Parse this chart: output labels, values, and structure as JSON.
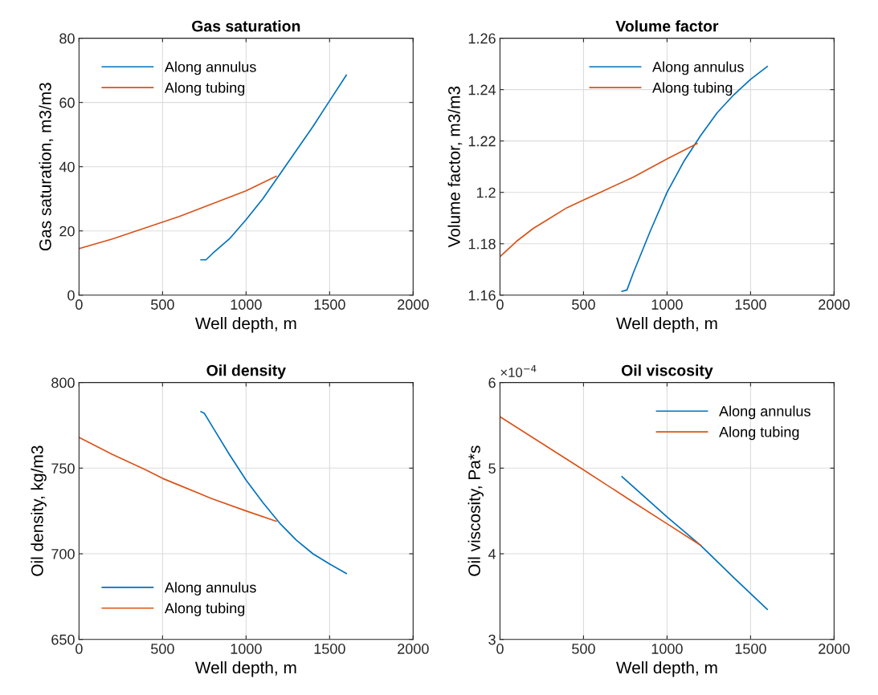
{
  "chart_data": [
    {
      "type": "line",
      "title": "Gas saturation",
      "xlabel": "Well depth, m",
      "ylabel": "Gas saturation, m3/m3",
      "xlim": [
        0,
        2000
      ],
      "xticks": [
        0,
        500,
        1000,
        1500,
        2000
      ],
      "ylim": [
        0,
        80
      ],
      "yticks": [
        0,
        20,
        40,
        60,
        80
      ],
      "grid": true,
      "legend": "top left",
      "series": [
        {
          "name": "Along annulus",
          "color": "#0072bd",
          "x": [
            730,
            760,
            800,
            900,
            1000,
            1100,
            1200,
            1300,
            1400,
            1500,
            1600
          ],
          "values": [
            11,
            11,
            13,
            17.5,
            23.5,
            30,
            37.5,
            45,
            52.5,
            60.5,
            68.5
          ]
        },
        {
          "name": "Along tubing",
          "color": "#d95319",
          "x": [
            0,
            200,
            400,
            600,
            800,
            1000,
            1180
          ],
          "values": [
            14.5,
            17.5,
            21,
            24.5,
            28.5,
            32.5,
            37
          ]
        }
      ]
    },
    {
      "type": "line",
      "title": "Volume factor",
      "xlabel": "Well depth, m",
      "ylabel": "Volume factor, m3/m3",
      "xlim": [
        0,
        2000
      ],
      "xticks": [
        0,
        500,
        1000,
        1500,
        2000
      ],
      "ylim": [
        1.16,
        1.26
      ],
      "yticks": [
        1.16,
        1.18,
        1.2,
        1.22,
        1.24,
        1.26
      ],
      "grid": true,
      "legend": "top",
      "series": [
        {
          "name": "Along annulus",
          "color": "#0072bd",
          "x": [
            730,
            760,
            800,
            900,
            1000,
            1100,
            1200,
            1300,
            1400,
            1500,
            1600
          ],
          "values": [
            1.1615,
            1.162,
            1.169,
            1.185,
            1.2,
            1.212,
            1.222,
            1.231,
            1.238,
            1.244,
            1.249
          ]
        },
        {
          "name": "Along tubing",
          "color": "#d95319",
          "x": [
            0,
            100,
            200,
            300,
            400,
            500,
            600,
            800,
            1000,
            1180
          ],
          "values": [
            1.175,
            1.181,
            1.186,
            1.19,
            1.194,
            1.197,
            1.2,
            1.206,
            1.213,
            1.219
          ]
        }
      ]
    },
    {
      "type": "line",
      "title": "Oil density",
      "xlabel": "Well depth, m",
      "ylabel": "Oil density, kg/m3",
      "xlim": [
        0,
        2000
      ],
      "xticks": [
        0,
        500,
        1000,
        1500,
        2000
      ],
      "ylim": [
        650,
        800
      ],
      "yticks": [
        650,
        700,
        750,
        800
      ],
      "grid": true,
      "legend": "bottom left",
      "series": [
        {
          "name": "Along annulus",
          "color": "#0072bd",
          "x": [
            730,
            750,
            800,
            900,
            1000,
            1100,
            1200,
            1300,
            1400,
            1500,
            1600
          ],
          "values": [
            783,
            782,
            774,
            758,
            743,
            730,
            718,
            708,
            700,
            694,
            688.5
          ]
        },
        {
          "name": "Along tubing",
          "color": "#d95319",
          "x": [
            0,
            200,
            400,
            500,
            600,
            800,
            1000,
            1180
          ],
          "values": [
            768,
            758,
            749,
            744,
            740,
            732,
            725,
            719
          ]
        }
      ]
    },
    {
      "type": "line",
      "title": "Oil viscosity",
      "xlabel": "Well depth, m",
      "ylabel": "Oil viscosity, Pa*s",
      "annotations": [
        "×10$^{−4}$"
      ],
      "xlim": [
        0,
        2000
      ],
      "xticks": [
        0,
        500,
        1000,
        1500,
        2000
      ],
      "ylim": [
        3,
        6
      ],
      "yticks": [
        3,
        4,
        5,
        6
      ],
      "grid": true,
      "legend": "top right",
      "series": [
        {
          "name": "Along annulus",
          "color": "#0072bd",
          "x": [
            730,
            1000,
            1200,
            1400,
            1600
          ],
          "values": [
            4.9,
            4.43,
            4.1,
            3.72,
            3.35
          ]
        },
        {
          "name": "Along tubing",
          "color": "#d95319",
          "x": [
            0,
            500,
            800,
            1000,
            1200
          ],
          "values": [
            5.6,
            4.98,
            4.6,
            4.35,
            4.1
          ]
        }
      ]
    }
  ]
}
